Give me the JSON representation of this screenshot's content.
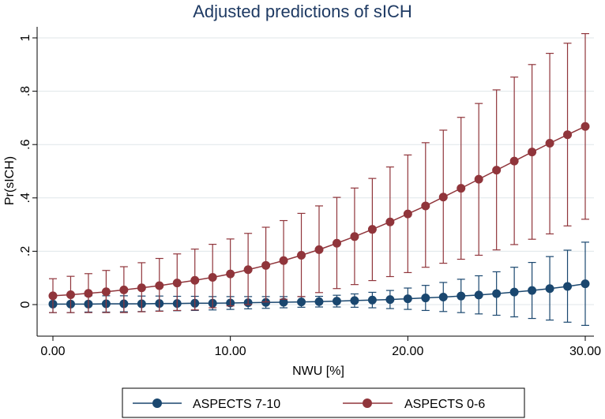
{
  "chart_data": {
    "type": "line",
    "title": "Adjusted predictions of sICH",
    "xlabel": "NWU [%]",
    "ylabel": "Pr(sICH)",
    "xlim": [
      0,
      30
    ],
    "ylim": [
      -0.05,
      1.03
    ],
    "x_ticks": [
      0,
      10,
      20,
      30
    ],
    "x_tick_labels": [
      "0.00",
      "10.00",
      "20.00",
      "30.00"
    ],
    "y_ticks": [
      0,
      0.2,
      0.4,
      0.6,
      0.8,
      1
    ],
    "y_tick_labels": [
      "0",
      ".2",
      ".4",
      ".6",
      ".8",
      "1"
    ],
    "grid": true,
    "legend_position": "bottom",
    "x": [
      0,
      1,
      2,
      3,
      4,
      5,
      6,
      7,
      8,
      9,
      10,
      11,
      12,
      13,
      14,
      15,
      16,
      17,
      18,
      19,
      20,
      21,
      22,
      23,
      24,
      25,
      26,
      27,
      28,
      29,
      30
    ],
    "series": [
      {
        "name": "ASPECTS 7-10",
        "color": "#1a476f",
        "values": [
          0.002,
          0.002,
          0.002,
          0.003,
          0.003,
          0.003,
          0.004,
          0.004,
          0.005,
          0.005,
          0.006,
          0.007,
          0.008,
          0.009,
          0.01,
          0.011,
          0.013,
          0.015,
          0.017,
          0.019,
          0.022,
          0.025,
          0.028,
          0.032,
          0.036,
          0.041,
          0.047,
          0.053,
          0.06,
          0.068,
          0.078
        ],
        "ci_low": [
          -0.03,
          -0.03,
          -0.028,
          -0.028,
          -0.027,
          -0.026,
          -0.024,
          -0.023,
          -0.022,
          -0.02,
          -0.018,
          -0.016,
          -0.014,
          -0.012,
          -0.01,
          -0.009,
          -0.009,
          -0.01,
          -0.012,
          -0.015,
          -0.018,
          -0.022,
          -0.026,
          -0.03,
          -0.035,
          -0.04,
          -0.046,
          -0.052,
          -0.058,
          -0.066,
          -0.078
        ],
        "ci_high": [
          0.035,
          0.034,
          0.033,
          0.033,
          0.033,
          0.032,
          0.032,
          0.031,
          0.031,
          0.03,
          0.03,
          0.03,
          0.03,
          0.03,
          0.03,
          0.031,
          0.035,
          0.04,
          0.046,
          0.053,
          0.062,
          0.072,
          0.083,
          0.095,
          0.108,
          0.123,
          0.14,
          0.158,
          0.18,
          0.204,
          0.234
        ]
      },
      {
        "name": "ASPECTS 0-6",
        "color": "#90353b",
        "values": [
          0.033,
          0.037,
          0.042,
          0.048,
          0.055,
          0.063,
          0.071,
          0.081,
          0.091,
          0.102,
          0.115,
          0.131,
          0.147,
          0.165,
          0.185,
          0.206,
          0.23,
          0.255,
          0.282,
          0.31,
          0.34,
          0.37,
          0.403,
          0.436,
          0.47,
          0.504,
          0.538,
          0.572,
          0.605,
          0.637,
          0.668
        ],
        "ci_low": [
          -0.03,
          -0.03,
          -0.03,
          -0.03,
          -0.03,
          -0.027,
          -0.025,
          -0.022,
          -0.02,
          -0.012,
          -0.005,
          0.0,
          0.01,
          0.02,
          0.03,
          0.045,
          0.06,
          0.075,
          0.09,
          0.105,
          0.12,
          0.14,
          0.155,
          0.17,
          0.185,
          0.205,
          0.225,
          0.245,
          0.265,
          0.295,
          0.32
        ],
        "ci_high": [
          0.097,
          0.106,
          0.116,
          0.128,
          0.142,
          0.157,
          0.173,
          0.19,
          0.208,
          0.226,
          0.246,
          0.267,
          0.29,
          0.315,
          0.342,
          0.37,
          0.402,
          0.437,
          0.473,
          0.516,
          0.561,
          0.607,
          0.654,
          0.702,
          0.754,
          0.805,
          0.853,
          0.9,
          0.942,
          0.98,
          1.016
        ]
      }
    ]
  },
  "colors": {
    "background": "#ffffff",
    "plot_background": "#ffffff",
    "title_color": "#1e3a63",
    "grid_color": "#dfe6ea"
  }
}
